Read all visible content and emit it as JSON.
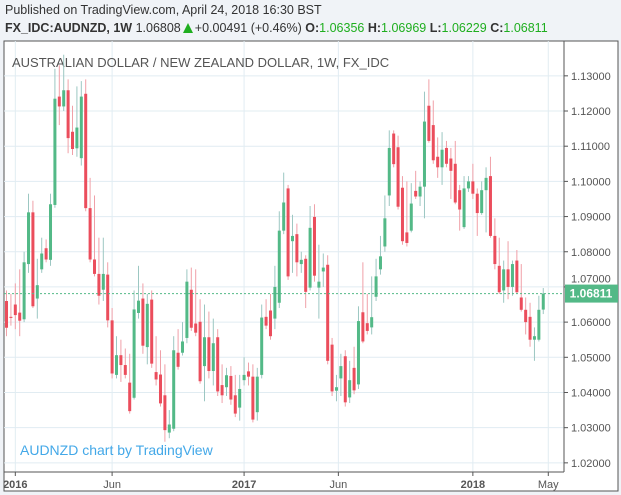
{
  "header": {
    "published": "Published on TradingView.com, April 24, 2018 16:30 BST",
    "symbol": "FX_IDC:AUDNZD, 1W",
    "last": "1.06808",
    "change": "+0.00491 (+0.46%)",
    "change_direction_icon": "triangle-up-icon",
    "o_label": "O:",
    "o_value": "1.06356",
    "h_label": "H:",
    "h_value": "1.06969",
    "l_label": "L:",
    "l_value": "1.06229",
    "c_label": "C:",
    "c_value": "1.06811"
  },
  "colors": {
    "up": "#53b987",
    "down": "#eb4d5c",
    "up_wick": "#9cc7c2",
    "down_wick": "#f0a0a8",
    "grid": "#e1ecf2",
    "watermark": "#43a8e8",
    "ohlc_values": "#1fae1f"
  },
  "chart_data": {
    "type": "candlestick",
    "title": "AUSTRALIAN DOLLAR / NEW ZEALAND DOLLAR, 1W, FX_IDC",
    "watermark": "AUDNZD chart by TradingView",
    "interval": "1W",
    "grid": true,
    "xlim": [
      "2015-12-17",
      "2018-05-26"
    ],
    "ylim": [
      1.0174,
      1.1399
    ],
    "x_ticks": [
      {
        "date": "2016-01-04",
        "label": "2016",
        "bold": true
      },
      {
        "date": "2016-06-06",
        "label": "Jun",
        "bold": false
      },
      {
        "date": "2017-01-02",
        "label": "2017",
        "bold": true
      },
      {
        "date": "2017-06-01",
        "label": "Jun",
        "bold": false
      },
      {
        "date": "2018-01-01",
        "label": "2018",
        "bold": true
      },
      {
        "date": "2018-05-01",
        "label": "May",
        "bold": false
      }
    ],
    "y_ticks": [
      "1.02000",
      "1.03000",
      "1.04000",
      "1.05000",
      "1.06000",
      "1.07000",
      "1.08000",
      "1.09000",
      "1.10000",
      "1.11000",
      "1.12000",
      "1.13000"
    ],
    "last_price": "1.06811",
    "candles_fields": [
      "date",
      "open",
      "high",
      "low",
      "close"
    ],
    "candles": [
      [
        "2015-12-21",
        1.066,
        1.069,
        1.056,
        1.0584
      ],
      [
        "2015-12-28",
        1.0615,
        1.068,
        1.059,
        1.0612
      ],
      [
        "2016-01-04",
        1.065,
        1.071,
        1.058,
        1.062
      ],
      [
        "2016-01-11",
        1.0627,
        1.075,
        1.056,
        1.0604
      ],
      [
        "2016-01-18",
        1.0608,
        1.08,
        1.06,
        1.077
      ],
      [
        "2016-01-25",
        1.0765,
        1.0965,
        1.074,
        1.0912
      ],
      [
        "2016-02-01",
        1.0912,
        1.0945,
        1.064,
        1.0645
      ],
      [
        "2016-02-08",
        1.0667,
        1.078,
        1.061,
        1.0705
      ],
      [
        "2016-02-15",
        1.075,
        1.084,
        1.074,
        1.0795
      ],
      [
        "2016-02-22",
        1.081,
        1.0835,
        1.077,
        1.0778
      ],
      [
        "2016-02-29",
        1.0777,
        1.0965,
        1.076,
        1.0935
      ],
      [
        "2016-03-07",
        1.0933,
        1.132,
        1.0925,
        1.1235
      ],
      [
        "2016-03-14",
        1.1241,
        1.133,
        1.116,
        1.1213
      ],
      [
        "2016-03-21",
        1.1213,
        1.136,
        1.12,
        1.1259
      ],
      [
        "2016-03-28",
        1.1259,
        1.129,
        1.108,
        1.1123
      ],
      [
        "2016-04-04",
        1.1141,
        1.1215,
        1.1075,
        1.1092
      ],
      [
        "2016-04-11",
        1.1094,
        1.127,
        1.107,
        1.1153
      ],
      [
        "2016-04-18",
        1.1066,
        1.1285,
        1.1045,
        1.1241
      ],
      [
        "2016-04-25",
        1.1249,
        1.129,
        1.0915,
        1.0924
      ],
      [
        "2016-05-02",
        1.0924,
        1.101,
        1.077,
        1.0778
      ],
      [
        "2016-05-09",
        1.0778,
        1.096,
        1.073,
        1.0737
      ],
      [
        "2016-05-16",
        1.0737,
        1.084,
        1.065,
        1.0675
      ],
      [
        "2016-05-23",
        1.0692,
        1.084,
        1.066,
        1.0737
      ],
      [
        "2016-05-30",
        1.0735,
        1.077,
        1.0585,
        1.0605
      ],
      [
        "2016-06-06",
        1.0605,
        1.064,
        1.044,
        1.0454
      ],
      [
        "2016-06-13",
        1.045,
        1.056,
        1.044,
        1.0506
      ],
      [
        "2016-06-20",
        1.0506,
        1.055,
        1.043,
        1.0478
      ],
      [
        "2016-06-27",
        1.0478,
        1.0525,
        1.044,
        1.045
      ],
      [
        "2016-07-04",
        1.0428,
        1.051,
        1.034,
        1.0347
      ],
      [
        "2016-07-11",
        1.0385,
        1.069,
        1.038,
        1.0636
      ],
      [
        "2016-07-18",
        1.0626,
        1.076,
        1.061,
        1.0661
      ],
      [
        "2016-07-25",
        1.0667,
        1.071,
        1.051,
        1.0533
      ],
      [
        "2016-08-01",
        1.0529,
        1.068,
        1.048,
        1.0652
      ],
      [
        "2016-08-08",
        1.0664,
        1.069,
        1.047,
        1.0482
      ],
      [
        "2016-08-15",
        1.0458,
        1.056,
        1.042,
        1.0437
      ],
      [
        "2016-08-22",
        1.0451,
        1.052,
        1.036,
        1.0369
      ],
      [
        "2016-08-29",
        1.0392,
        1.048,
        1.026,
        1.0293
      ],
      [
        "2016-09-05",
        1.0286,
        1.035,
        1.027,
        1.0309
      ],
      [
        "2016-09-12",
        1.0297,
        1.056,
        1.029,
        1.052
      ],
      [
        "2016-09-19",
        1.0513,
        1.058,
        1.0465,
        1.0473
      ],
      [
        "2016-09-26",
        1.0513,
        1.06,
        1.0505,
        1.0545
      ],
      [
        "2016-10-03",
        1.0555,
        1.075,
        1.054,
        1.0715
      ],
      [
        "2016-10-10",
        1.0692,
        1.0755,
        1.0575,
        1.0584
      ],
      [
        "2016-10-17",
        1.0596,
        1.075,
        1.056,
        1.057
      ],
      [
        "2016-10-24",
        1.0601,
        1.0665,
        1.0425,
        1.0432
      ],
      [
        "2016-10-31",
        1.0475,
        1.065,
        1.0375,
        1.0557
      ],
      [
        "2016-11-07",
        1.0557,
        1.063,
        1.044,
        1.0461
      ],
      [
        "2016-11-14",
        1.0461,
        1.061,
        1.042,
        1.054
      ],
      [
        "2016-11-21",
        1.0557,
        1.058,
        1.039,
        1.0403
      ],
      [
        "2016-11-28",
        1.0421,
        1.048,
        1.037,
        1.0392
      ],
      [
        "2016-12-05",
        1.0415,
        1.047,
        1.039,
        1.0449
      ],
      [
        "2016-12-12",
        1.0447,
        1.0475,
        1.0365,
        1.038
      ],
      [
        "2016-12-19",
        1.0392,
        1.045,
        1.033,
        1.034
      ],
      [
        "2016-12-26",
        1.0357,
        1.045,
        1.032,
        1.041
      ],
      [
        "2017-01-02",
        1.0435,
        1.05,
        1.042,
        1.045
      ],
      [
        "2017-01-09",
        1.046,
        1.0485,
        1.042,
        1.0445
      ],
      [
        "2017-01-16",
        1.0445,
        1.048,
        1.0315,
        1.0323
      ],
      [
        "2017-01-23",
        1.0344,
        1.047,
        1.032,
        1.0445
      ],
      [
        "2017-01-30",
        1.045,
        1.065,
        1.044,
        1.0613
      ],
      [
        "2017-02-06",
        1.0615,
        1.0665,
        1.058,
        1.059
      ],
      [
        "2017-02-13",
        1.0633,
        1.068,
        1.055,
        1.056
      ],
      [
        "2017-02-20",
        1.061,
        1.076,
        1.058,
        1.07
      ],
      [
        "2017-02-27",
        1.0655,
        1.0915,
        1.064,
        1.086
      ],
      [
        "2017-03-06",
        1.086,
        1.1025,
        1.085,
        1.094
      ],
      [
        "2017-03-13",
        1.098,
        1.099,
        1.072,
        1.073
      ],
      [
        "2017-03-20",
        1.083,
        1.0905,
        1.074,
        1.0845
      ],
      [
        "2017-03-27",
        1.085,
        1.088,
        1.073,
        1.077
      ],
      [
        "2017-04-03",
        1.0765,
        1.08,
        1.074,
        1.0777
      ],
      [
        "2017-04-10",
        1.078,
        1.079,
        1.064,
        1.0686
      ],
      [
        "2017-04-17",
        1.0698,
        1.093,
        1.069,
        1.0868
      ],
      [
        "2017-04-24",
        1.0899,
        1.0935,
        1.0715,
        1.0732
      ],
      [
        "2017-05-01",
        1.0698,
        1.082,
        1.061,
        1.0715
      ],
      [
        "2017-05-08",
        1.0744,
        1.0795,
        1.07,
        1.0755
      ],
      [
        "2017-05-15",
        1.0763,
        1.079,
        1.048,
        1.049
      ],
      [
        "2017-05-22",
        1.0536,
        1.0555,
        1.039,
        1.0403
      ],
      [
        "2017-05-29",
        1.0405,
        1.045,
        1.0375,
        1.0415
      ],
      [
        "2017-06-05",
        1.044,
        1.051,
        1.039,
        1.0475
      ],
      [
        "2017-06-12",
        1.0503,
        1.052,
        1.036,
        1.0372
      ],
      [
        "2017-06-19",
        1.0386,
        1.049,
        1.037,
        1.0435
      ],
      [
        "2017-06-26",
        1.047,
        1.053,
        1.0395,
        1.0406
      ],
      [
        "2017-07-03",
        1.0423,
        1.0645,
        1.041,
        1.0603
      ],
      [
        "2017-07-10",
        1.0628,
        1.077,
        1.054,
        1.0545
      ],
      [
        "2017-07-17",
        1.0597,
        1.068,
        1.0565,
        1.0575
      ],
      [
        "2017-07-24",
        1.0585,
        1.073,
        1.0565,
        1.0614
      ],
      [
        "2017-07-31",
        1.0672,
        1.078,
        1.066,
        1.073
      ],
      [
        "2017-08-07",
        1.075,
        1.0845,
        1.0735,
        1.0787
      ],
      [
        "2017-08-14",
        1.0815,
        1.096,
        1.08,
        1.0895
      ],
      [
        "2017-08-21",
        1.096,
        1.1145,
        1.093,
        1.1095
      ],
      [
        "2017-08-28",
        1.1136,
        1.1145,
        1.104,
        1.1049
      ],
      [
        "2017-09-04",
        1.1097,
        1.113,
        1.092,
        1.0928
      ],
      [
        "2017-09-11",
        1.0982,
        1.1015,
        1.082,
        1.083
      ],
      [
        "2017-09-18",
        1.0855,
        1.1,
        1.0815,
        1.0825
      ],
      [
        "2017-09-25",
        1.086,
        1.0995,
        1.0855,
        1.0937
      ],
      [
        "2017-10-02",
        1.0973,
        1.103,
        1.095,
        1.0957
      ],
      [
        "2017-10-09",
        1.0957,
        1.1,
        1.093,
        1.0985
      ],
      [
        "2017-10-16",
        1.0985,
        1.1255,
        1.0895,
        1.117
      ],
      [
        "2017-10-23",
        1.1215,
        1.129,
        1.111,
        1.1115
      ],
      [
        "2017-10-30",
        1.116,
        1.123,
        1.105,
        1.106
      ],
      [
        "2017-11-06",
        1.107,
        1.1125,
        1.101,
        1.104
      ],
      [
        "2017-11-13",
        1.104,
        1.114,
        1.099,
        1.109
      ],
      [
        "2017-11-20",
        1.1095,
        1.1115,
        1.104,
        1.105
      ],
      [
        "2017-11-27",
        1.1065,
        1.1095,
        1.095,
        1.103
      ],
      [
        "2017-12-04",
        1.105,
        1.1115,
        1.0935,
        1.094
      ],
      [
        "2017-12-11",
        1.0975,
        1.099,
        1.086,
        1.092
      ],
      [
        "2017-12-18",
        1.087,
        1.1015,
        1.0865,
        1.098
      ],
      [
        "2017-12-25",
        1.098,
        1.1015,
        1.097,
        1.1
      ],
      [
        "2018-01-01",
        1.1,
        1.105,
        1.095,
        1.0965
      ],
      [
        "2018-01-08",
        1.0965,
        1.098,
        1.0845,
        1.091
      ],
      [
        "2018-01-15",
        1.091,
        1.1,
        1.0905,
        1.0975
      ],
      [
        "2018-01-22",
        1.0975,
        1.104,
        1.0855,
        1.101
      ],
      [
        "2018-01-29",
        1.1015,
        1.107,
        1.084,
        1.0845
      ],
      [
        "2018-02-05",
        1.0845,
        1.0895,
        1.075,
        1.0765
      ],
      [
        "2018-02-12",
        1.076,
        1.084,
        1.068,
        1.0685
      ],
      [
        "2018-02-19",
        1.069,
        1.0775,
        1.0655,
        1.075
      ],
      [
        "2018-02-26",
        1.075,
        1.083,
        1.0665,
        1.07
      ],
      [
        "2018-03-05",
        1.07,
        1.0775,
        1.0675,
        1.0765
      ],
      [
        "2018-03-12",
        1.0775,
        1.0805,
        1.068,
        1.0685
      ],
      [
        "2018-03-19",
        1.067,
        1.0765,
        1.063,
        1.0635
      ],
      [
        "2018-03-26",
        1.0635,
        1.067,
        1.0565,
        1.06
      ],
      [
        "2018-04-02",
        1.0615,
        1.0655,
        1.053,
        1.055
      ],
      [
        "2018-04-09",
        1.055,
        1.0585,
        1.049,
        1.056
      ],
      [
        "2018-04-16",
        1.055,
        1.0675,
        1.0545,
        1.0635
      ],
      [
        "2018-04-23",
        1.06356,
        1.06969,
        1.06229,
        1.06811
      ]
    ]
  }
}
